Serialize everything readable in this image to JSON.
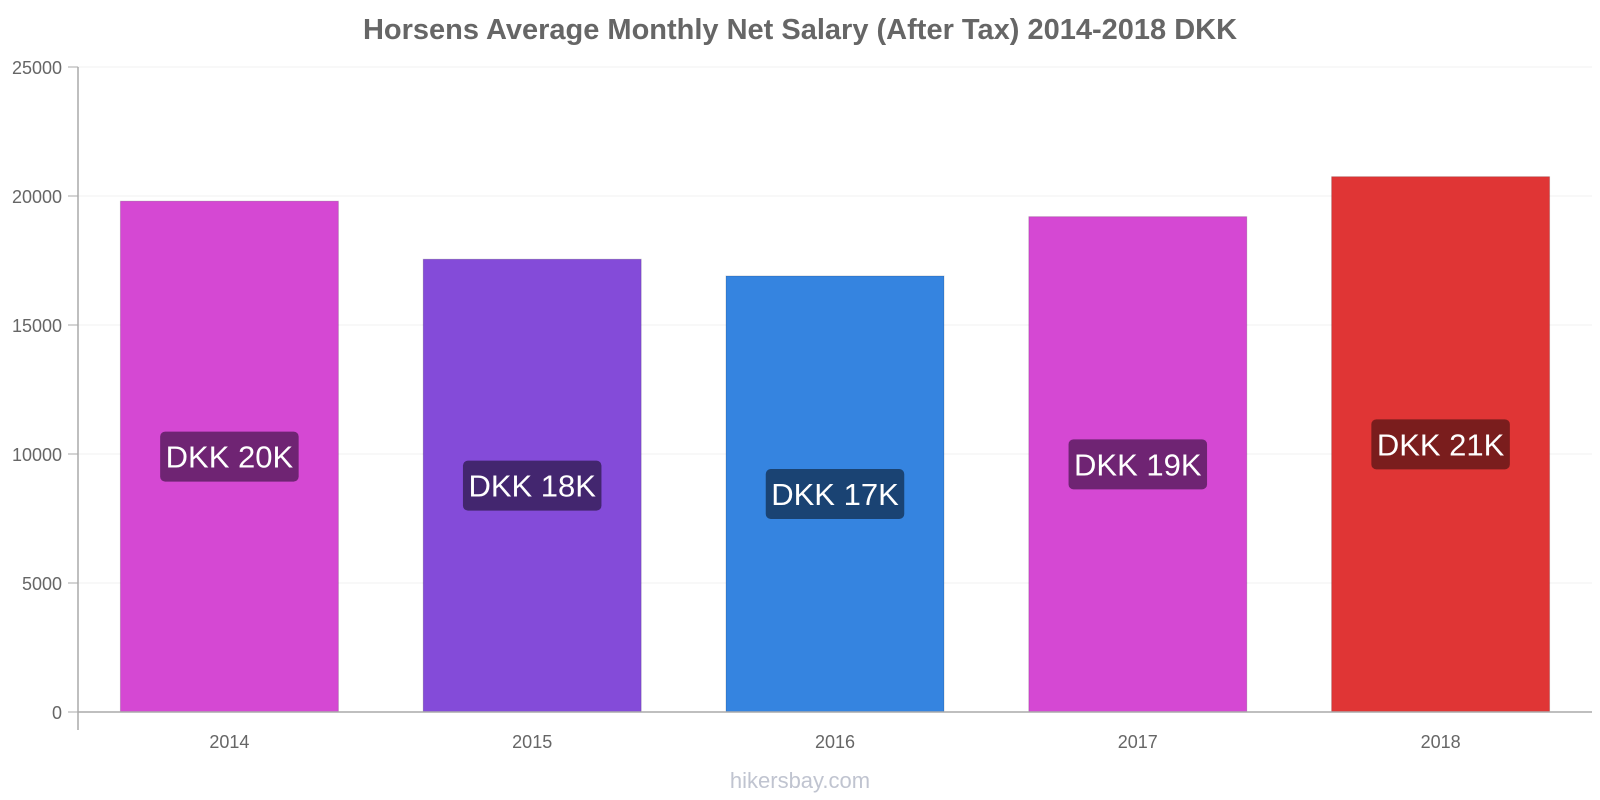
{
  "chart_data": {
    "type": "bar",
    "title": "Horsens Average Monthly Net Salary (After Tax) 2014-2018 DKK",
    "xlabel": "",
    "ylabel": "",
    "ylim": [
      0,
      25000
    ],
    "yticks": [
      0,
      5000,
      10000,
      15000,
      20000,
      25000
    ],
    "grid": true,
    "categories": [
      "2014",
      "2015",
      "2016",
      "2017",
      "2018"
    ],
    "values": [
      19800,
      17550,
      16900,
      19200,
      20750
    ],
    "data_labels": [
      "DKK 20K",
      "DKK 18K",
      "DKK 17K",
      "DKK 19K",
      "DKK 21K"
    ],
    "bar_colors": [
      "#d548d3",
      "#844bd9",
      "#3584e0",
      "#d548d3",
      "#e03535"
    ],
    "label_bg_colors": [
      "#6f2473",
      "#43266f",
      "#1a4373",
      "#6f2473",
      "#7a1d1d"
    ]
  },
  "watermark": "hikersbay.com"
}
